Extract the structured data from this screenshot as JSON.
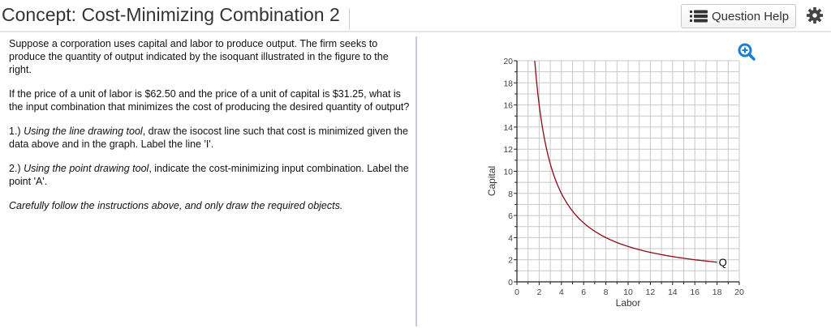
{
  "header": {
    "title": "Concept: Cost-Minimizing Combination 2",
    "help_button_label": "Question Help",
    "help_icon": "list-icon",
    "settings_icon": "gear-icon"
  },
  "question": {
    "paragraph1": "Suppose a corporation uses capital and labor to produce output.  The firm seeks to produce the quantity of output indicated by the isoquant illustrated in the figure to the right.",
    "paragraph2": "If the price of a unit of labor is $62.50 and the price of a unit of capital is $31.25, what is the input combination that minimizes the cost of producing the desired quantity of output?",
    "step1": {
      "prefix": "1.)  ",
      "tool": "Using the line drawing tool",
      "text": ", draw the isocost line such that cost is minimized given the data above and in the graph. Label the line 'I'."
    },
    "step2": {
      "prefix": "2.)  ",
      "tool": "Using the point drawing tool",
      "text": ", indicate the cost-minimizing input combination. Label the point 'A'."
    },
    "note": "Carefully follow the instructions above, and only draw the required objects."
  },
  "graph": {
    "zoom_icon": "zoom-in-icon",
    "curve_color": "#8b0a1a",
    "grid_color": "#c8c8c8"
  },
  "chart_data": {
    "type": "line",
    "title": "",
    "xlabel": "Labor",
    "ylabel": "Capital",
    "xlim": [
      0,
      20
    ],
    "ylim": [
      0,
      20
    ],
    "grid": true,
    "x_ticks": [
      0,
      2,
      4,
      6,
      8,
      10,
      12,
      14,
      16,
      18,
      20
    ],
    "y_ticks": [
      0,
      2,
      4,
      6,
      8,
      10,
      12,
      14,
      16,
      18,
      20
    ],
    "series": [
      {
        "name": "Q",
        "label": "Q",
        "x": [
          1.6,
          2,
          2.5,
          3,
          4,
          5,
          6,
          8,
          10,
          12,
          14,
          16,
          18
        ],
        "values": [
          20,
          16,
          12.8,
          10.7,
          8,
          6.4,
          5.3,
          4,
          3.2,
          2.7,
          2.3,
          2,
          1.8
        ]
      }
    ]
  }
}
